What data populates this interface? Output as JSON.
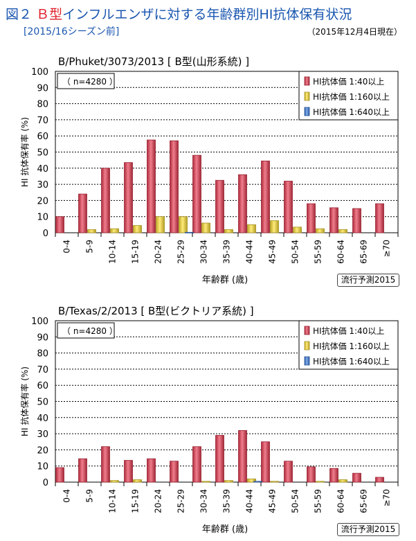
{
  "header": {
    "fig_label": "図２",
    "title_red": "Ｂ型",
    "title_rest": "インフルエンザに対する年齢群別HI抗体保有状況",
    "subtitle": "[2015/16シーズン前]",
    "date": "（2015年12月4日現在）"
  },
  "colors": {
    "s1": "#e8384f",
    "s2": "#ffe033",
    "s3": "#3a7de0"
  },
  "chart_data": [
    {
      "type": "bar",
      "title": "B/Phuket/3073/2013 [ B型(山形系統) ]",
      "sample": "（ n=4280 ）",
      "xlabel": "年齢群 (歳)",
      "ylabel": "HI 抗体保有率 (%)",
      "ylim": [
        0,
        100
      ],
      "yticks": [
        "0",
        "10",
        "20",
        "30",
        "40",
        "50",
        "60",
        "70",
        "80",
        "90",
        "100"
      ],
      "badge": "流行予測2015",
      "categories": [
        "0-4",
        "5-9",
        "10-14",
        "15-19",
        "20-24",
        "25-29",
        "30-34",
        "35-39",
        "40-44",
        "45-49",
        "50-54",
        "55-59",
        "60-64",
        "65-69",
        "≥70"
      ],
      "series": [
        {
          "name": "HI抗体価 1:40以上",
          "values": [
            10,
            24,
            40,
            43.5,
            57.5,
            57,
            48,
            32.5,
            36,
            44.5,
            32,
            18,
            15.5,
            15,
            18
          ]
        },
        {
          "name": "HI抗体価 1:160以上",
          "values": [
            0,
            2,
            2.5,
            4.5,
            10,
            10,
            6,
            2,
            5,
            7.5,
            3.5,
            2.5,
            2,
            0,
            0
          ]
        },
        {
          "name": "HI抗体価 1:640以上",
          "values": [
            0,
            0,
            0,
            0,
            0,
            0.3,
            0,
            0,
            0,
            0,
            0,
            0,
            0,
            0,
            0
          ]
        }
      ],
      "legend": "top-right",
      "grid": true
    },
    {
      "type": "bar",
      "title": "B/Texas/2/2013 [ B型(ビクトリア系統) ]",
      "sample": "（ n=4280 ）",
      "xlabel": "年齢群 (歳)",
      "ylabel": "HI 抗体保有率 (%)",
      "ylim": [
        0,
        100
      ],
      "yticks": [
        "0",
        "10",
        "20",
        "30",
        "40",
        "50",
        "60",
        "70",
        "80",
        "90",
        "100"
      ],
      "badge": "流行予測2015",
      "categories": [
        "0-4",
        "5-9",
        "10-14",
        "15-19",
        "20-24",
        "25-29",
        "30-34",
        "35-39",
        "40-44",
        "45-49",
        "50-54",
        "55-59",
        "60-64",
        "65-69",
        "≥70"
      ],
      "series": [
        {
          "name": "HI抗体価 1:40以上",
          "values": [
            9,
            14.5,
            22,
            13.5,
            14.5,
            13,
            22,
            29,
            32,
            25,
            13,
            9.5,
            8.5,
            5.5,
            3
          ]
        },
        {
          "name": "HI抗体価 1:160以上",
          "values": [
            0,
            0,
            1,
            1.5,
            0,
            0,
            0.5,
            1,
            2,
            0.5,
            0,
            0.5,
            1.5,
            0,
            0
          ]
        },
        {
          "name": "HI抗体価 1:640以上",
          "values": [
            0,
            0,
            0,
            0,
            0,
            0,
            0,
            0,
            0.5,
            0,
            0,
            0,
            0,
            0,
            0
          ]
        }
      ],
      "legend": "top-right",
      "grid": true
    }
  ]
}
